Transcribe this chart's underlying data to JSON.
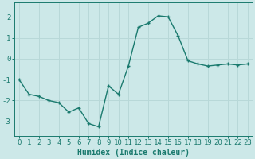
{
  "x": [
    0,
    1,
    2,
    3,
    4,
    5,
    6,
    7,
    8,
    9,
    10,
    11,
    12,
    13,
    14,
    15,
    16,
    17,
    18,
    19,
    20,
    21,
    22,
    23
  ],
  "y": [
    -1.0,
    -1.7,
    -1.8,
    -2.0,
    -2.1,
    -2.55,
    -2.35,
    -3.1,
    -3.25,
    -1.3,
    -1.7,
    -0.35,
    1.5,
    1.7,
    2.05,
    2.0,
    1.1,
    -0.1,
    -0.25,
    -0.35,
    -0.3,
    -0.25,
    -0.3,
    -0.25
  ],
  "xlabel": "Humidex (Indice chaleur)",
  "xlim": [
    -0.5,
    23.5
  ],
  "ylim": [
    -3.7,
    2.7
  ],
  "yticks": [
    -3,
    -2,
    -1,
    0,
    1,
    2
  ],
  "xticks": [
    0,
    1,
    2,
    3,
    4,
    5,
    6,
    7,
    8,
    9,
    10,
    11,
    12,
    13,
    14,
    15,
    16,
    17,
    18,
    19,
    20,
    21,
    22,
    23
  ],
  "line_color": "#1a7a6e",
  "marker_color": "#1a7a6e",
  "bg_color": "#cce8e8",
  "grid_color": "#b8d8d8",
  "spine_color": "#1a7a6e",
  "xlabel_fontsize": 7,
  "tick_fontsize": 6.5
}
